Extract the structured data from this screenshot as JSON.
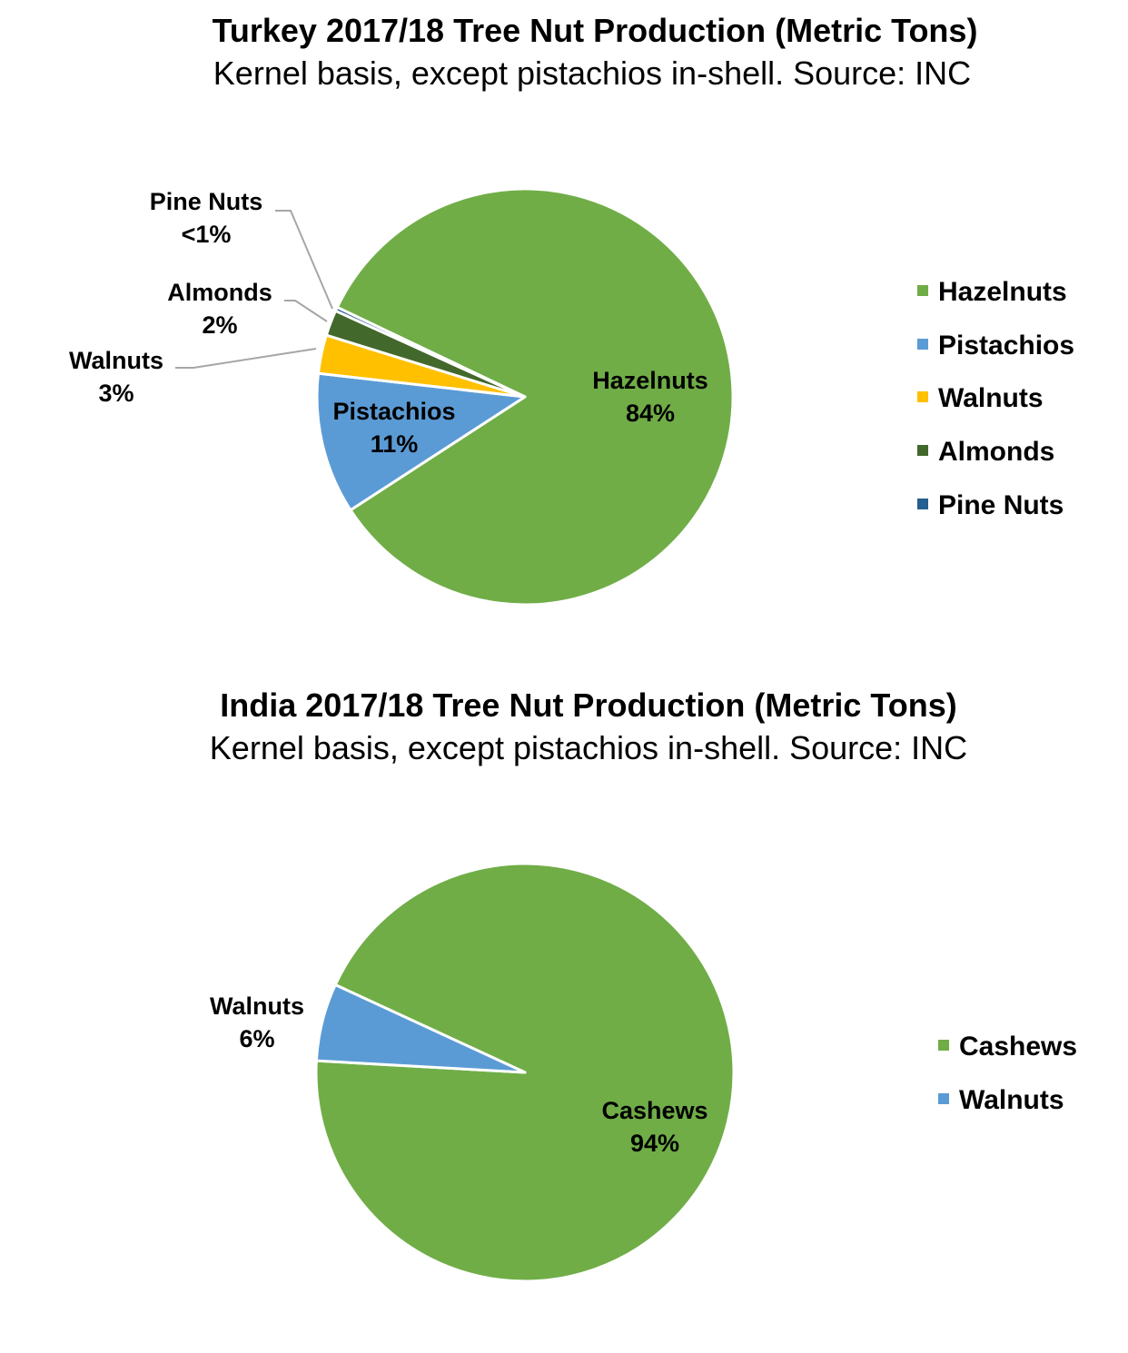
{
  "chart_data": [
    {
      "type": "pie",
      "title": "Turkey 2017/18 Tree Nut Production (Metric Tons)",
      "subtitle": "Kernel basis, except pistachios in-shell. Source: INC",
      "categories": [
        "Hazelnuts",
        "Pistachios",
        "Walnuts",
        "Almonds",
        "Pine Nuts"
      ],
      "values": [
        84,
        11,
        3,
        2,
        0.3
      ],
      "data_labels": [
        "84%",
        "11%",
        "3%",
        "2%",
        "<1%"
      ],
      "colors": [
        "#70AD47",
        "#5B9BD5",
        "#FFC000",
        "#43682B",
        "#255E91"
      ],
      "legend": "right"
    },
    {
      "type": "pie",
      "title": "India 2017/18 Tree Nut Production (Metric Tons)",
      "subtitle": "Kernel basis, except pistachios in-shell. Source: INC",
      "categories": [
        "Cashews",
        "Walnuts"
      ],
      "values": [
        94,
        6
      ],
      "data_labels": [
        "94%",
        "6%"
      ],
      "colors": [
        "#70AD47",
        "#5B9BD5"
      ],
      "legend": "right"
    }
  ]
}
